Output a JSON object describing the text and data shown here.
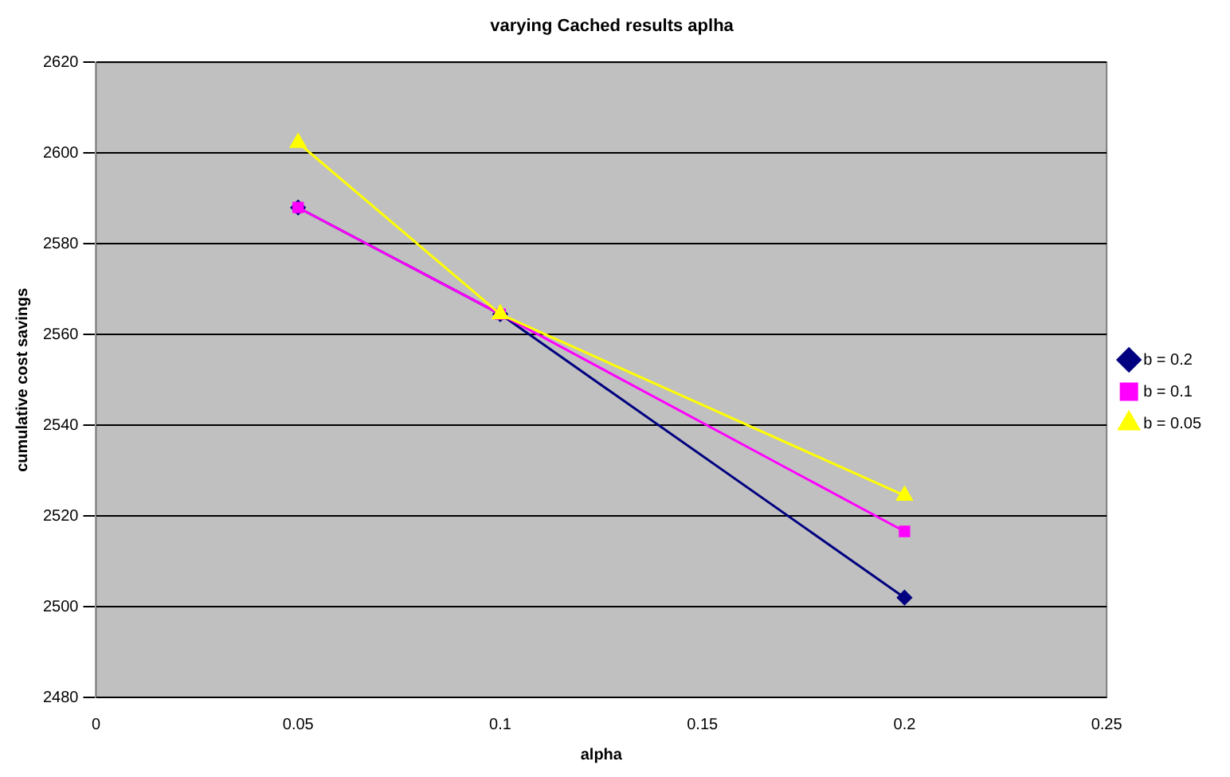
{
  "chart_data": {
    "type": "line",
    "title": "varying Cached results aplha",
    "xlabel": "alpha",
    "ylabel": "cumulative cost savings",
    "x": [
      0.05,
      0.1,
      0.2
    ],
    "xlim": [
      0,
      0.25
    ],
    "xticks": [
      0,
      0.05,
      0.1,
      0.15,
      0.2,
      0.25
    ],
    "ylim": [
      2480,
      2620
    ],
    "yticks": [
      2480,
      2500,
      2520,
      2540,
      2560,
      2580,
      2600,
      2620
    ],
    "grid": "y",
    "legend": "right",
    "series": [
      {
        "name": "b = 0.2",
        "color": "#000080",
        "marker": "diamond",
        "values": [
          2588,
          2564.5,
          2502
        ]
      },
      {
        "name": "b = 0.1",
        "color": "#ff00ff",
        "marker": "square",
        "values": [
          2588,
          2564.5,
          2516.6
        ]
      },
      {
        "name": "b = 0.05",
        "color": "#ffff00",
        "marker": "triangle",
        "values": [
          2602.3,
          2564.5,
          2524.5
        ]
      }
    ]
  }
}
